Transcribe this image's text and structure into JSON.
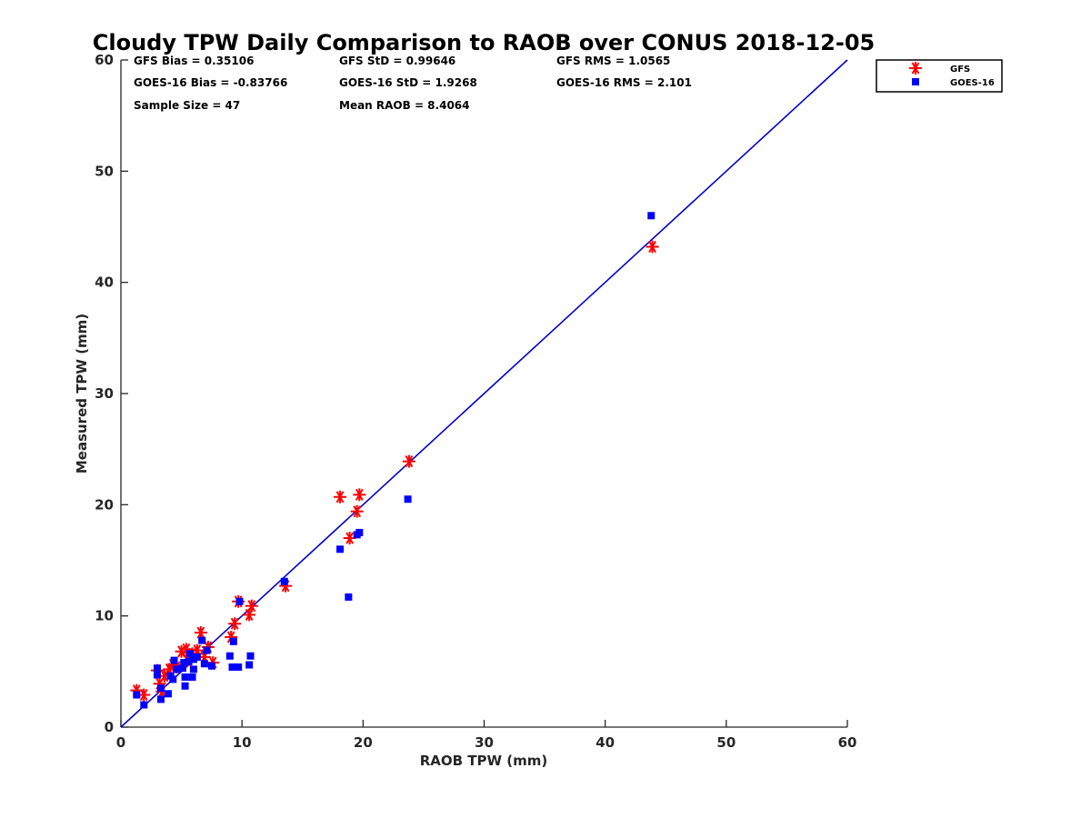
{
  "chart_data": {
    "type": "scatter",
    "title": "Cloudy TPW Daily Comparison to RAOB over CONUS 2018-12-05",
    "xlabel": "RAOB TPW (mm)",
    "ylabel": "Measured TPW (mm)",
    "xlim": [
      0,
      60
    ],
    "ylim": [
      0,
      60
    ],
    "xticks": [
      "0",
      "10",
      "20",
      "30",
      "40",
      "50",
      "60"
    ],
    "yticks": [
      "0",
      "10",
      "20",
      "30",
      "40",
      "50",
      "60"
    ],
    "grid": false,
    "legend_position": "outside-top-right",
    "reference_line": {
      "x": [
        0,
        60
      ],
      "y": [
        0,
        60
      ],
      "color": "#0000cc"
    },
    "stats": [
      "GFS Bias = 0.35106",
      "GFS StD = 0.99646",
      "GFS RMS = 1.0565",
      "GOES-16 Bias = -0.83766",
      "GOES-16 StD = 1.9268",
      "GOES-16 RMS = 2.101",
      "Sample Size = 47",
      "Mean RAOB = 8.4064"
    ],
    "series": [
      {
        "name": "GFS",
        "marker": "asterisk",
        "color": "#ff0000",
        "points": [
          [
            1.3,
            3.3
          ],
          [
            1.9,
            2.9
          ],
          [
            3.0,
            5.1
          ],
          [
            3.2,
            3.9
          ],
          [
            3.4,
            3.2
          ],
          [
            3.6,
            4.6
          ],
          [
            4.0,
            5.2
          ],
          [
            4.3,
            5.6
          ],
          [
            4.6,
            5.4
          ],
          [
            5.0,
            6.8
          ],
          [
            5.4,
            7.0
          ],
          [
            5.5,
            6.0
          ],
          [
            5.9,
            6.6
          ],
          [
            6.3,
            6.9
          ],
          [
            6.6,
            8.5
          ],
          [
            6.9,
            6.3
          ],
          [
            7.2,
            7.2
          ],
          [
            7.6,
            5.8
          ],
          [
            9.1,
            8.1
          ],
          [
            9.4,
            9.3
          ],
          [
            9.7,
            11.3
          ],
          [
            10.6,
            10.1
          ],
          [
            10.8,
            10.9
          ],
          [
            13.6,
            12.7
          ],
          [
            18.1,
            20.7
          ],
          [
            18.9,
            17.0
          ],
          [
            19.5,
            19.4
          ],
          [
            19.7,
            20.9
          ],
          [
            23.8,
            23.9
          ],
          [
            43.9,
            43.2
          ]
        ]
      },
      {
        "name": "GOES-16",
        "marker": "square",
        "color": "#0000ff",
        "points": [
          [
            1.3,
            2.9
          ],
          [
            1.9,
            2.0
          ],
          [
            3.0,
            5.3
          ],
          [
            3.0,
            4.7
          ],
          [
            3.3,
            3.5
          ],
          [
            3.3,
            2.5
          ],
          [
            3.9,
            3.0
          ],
          [
            4.1,
            4.6
          ],
          [
            4.3,
            4.3
          ],
          [
            4.4,
            6.0
          ],
          [
            4.6,
            5.2
          ],
          [
            5.1,
            5.3
          ],
          [
            5.2,
            5.8
          ],
          [
            5.3,
            4.5
          ],
          [
            5.3,
            3.7
          ],
          [
            5.6,
            5.9
          ],
          [
            5.7,
            6.6
          ],
          [
            5.9,
            4.5
          ],
          [
            6.0,
            5.2
          ],
          [
            6.0,
            6.1
          ],
          [
            6.3,
            6.3
          ],
          [
            6.7,
            7.8
          ],
          [
            6.9,
            5.7
          ],
          [
            7.1,
            6.9
          ],
          [
            7.5,
            5.5
          ],
          [
            9.0,
            6.4
          ],
          [
            9.2,
            5.4
          ],
          [
            9.3,
            7.7
          ],
          [
            9.7,
            5.4
          ],
          [
            9.8,
            11.3
          ],
          [
            10.6,
            5.6
          ],
          [
            10.7,
            6.4
          ],
          [
            13.5,
            13.1
          ],
          [
            18.1,
            16.0
          ],
          [
            18.8,
            11.7
          ],
          [
            19.5,
            17.3
          ],
          [
            19.7,
            17.5
          ],
          [
            23.7,
            20.5
          ],
          [
            43.8,
            46.0
          ]
        ]
      }
    ]
  }
}
